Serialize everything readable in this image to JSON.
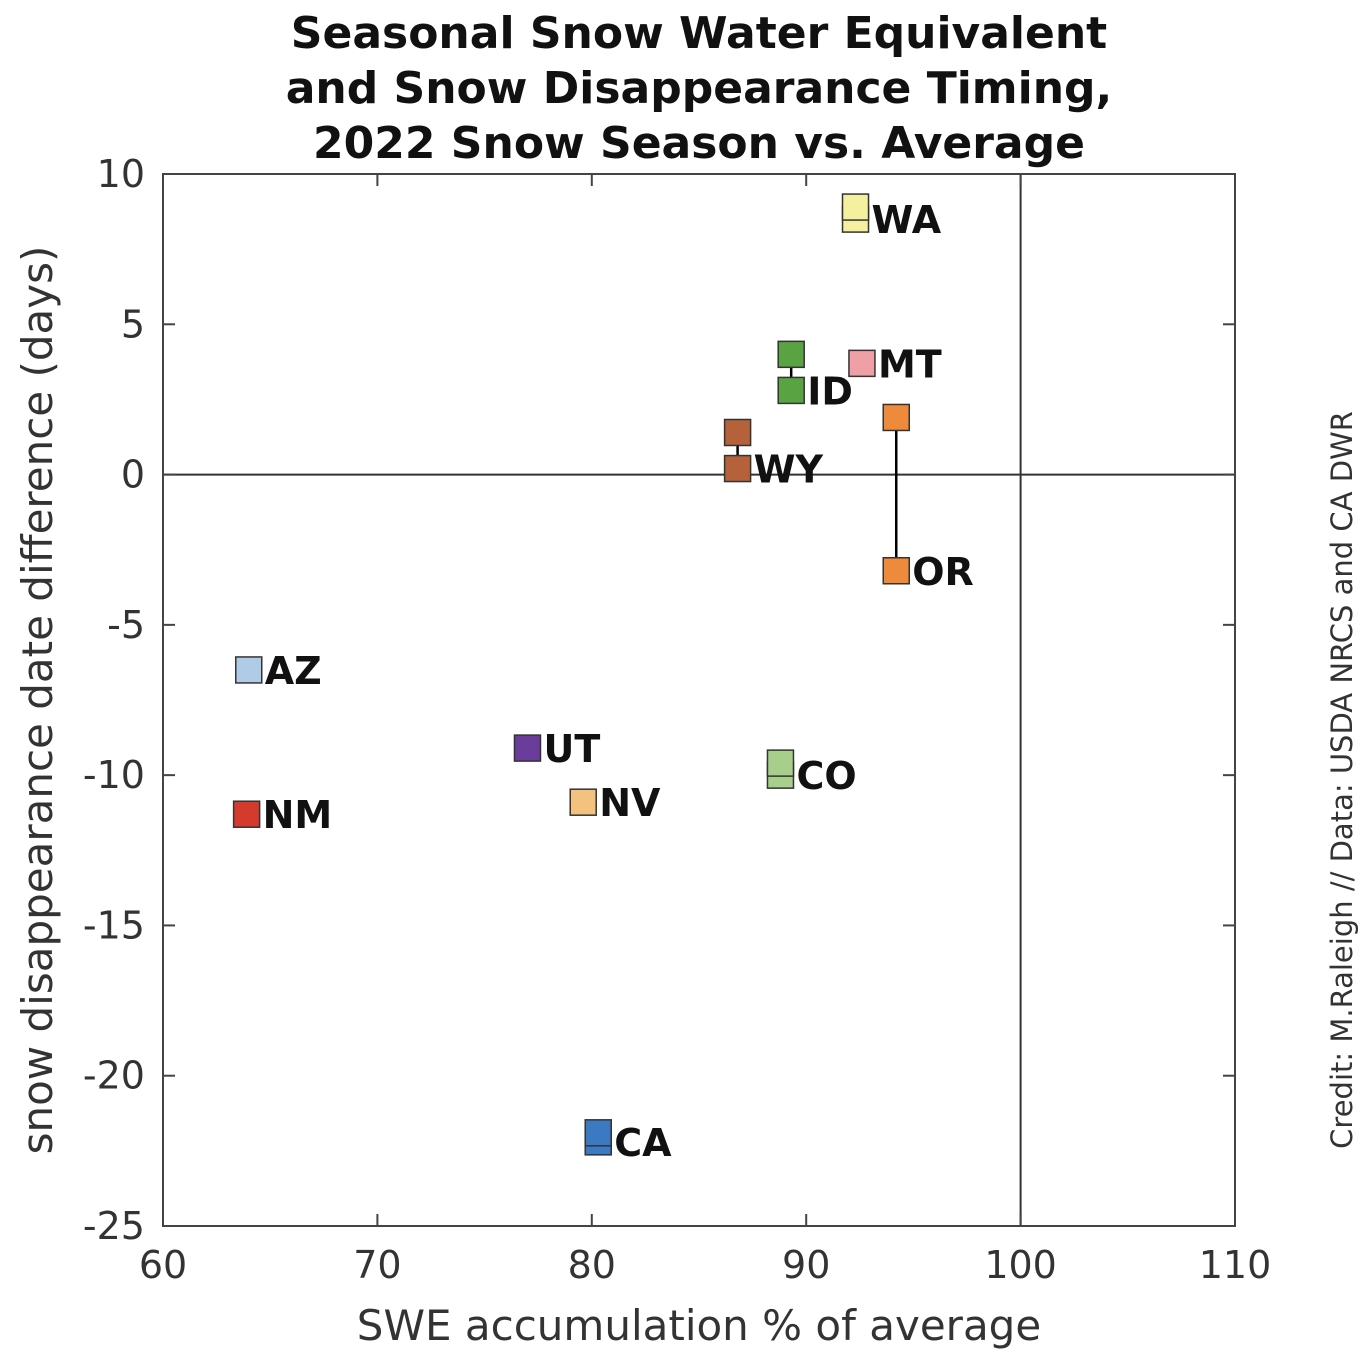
{
  "chart_data": {
    "type": "scatter",
    "title": [
      "Seasonal Snow Water Equivalent",
      "and Snow Disappearance Timing,",
      "2022 Snow Season vs. Average"
    ],
    "xlabel": "SWE accumulation % of average",
    "ylabel": "snow disappearance date difference (days)",
    "xlim": [
      60,
      110
    ],
    "ylim": [
      -25,
      10
    ],
    "xticks": [
      60,
      70,
      80,
      90,
      100,
      110
    ],
    "yticks": [
      10,
      5,
      0,
      -5,
      -10,
      -15,
      -20,
      -25
    ],
    "grid": false,
    "reference_lines": {
      "x": 100,
      "y": 0
    },
    "credit": "Credit: M.Raleigh // Data: USDA NRCS and CA DWR",
    "points": [
      {
        "label": "WA",
        "x": 92.3,
        "y": 8.5,
        "y_end": 8.9,
        "color": "#f5f0a0"
      },
      {
        "label": "MT",
        "x": 92.6,
        "y": 3.7,
        "color": "#eea0a6"
      },
      {
        "label": "ID",
        "x": 89.3,
        "y": 2.8,
        "y_end": 4.0,
        "color": "#59a343"
      },
      {
        "label": "WY",
        "x": 86.8,
        "y": 0.2,
        "y_end": 1.4,
        "color": "#b5613a"
      },
      {
        "label": "OR",
        "x": 94.2,
        "y": -3.2,
        "y_end": 1.9,
        "color": "#ee8a3c"
      },
      {
        "label": "AZ",
        "x": 64.0,
        "y": -6.5,
        "color": "#b0cbe6"
      },
      {
        "label": "UT",
        "x": 77.0,
        "y": -9.1,
        "color": "#6a3d9a"
      },
      {
        "label": "NM",
        "x": 63.9,
        "y": -11.3,
        "color": "#d43b2d"
      },
      {
        "label": "NV",
        "x": 79.6,
        "y": -10.9,
        "color": "#f3c27e"
      },
      {
        "label": "CO",
        "x": 88.8,
        "y": -10.0,
        "y_end": -9.6,
        "color": "#a7cf8b"
      },
      {
        "label": "CA",
        "x": 80.3,
        "y": -22.2,
        "y_end": -21.9,
        "color": "#3b79c2"
      }
    ]
  }
}
